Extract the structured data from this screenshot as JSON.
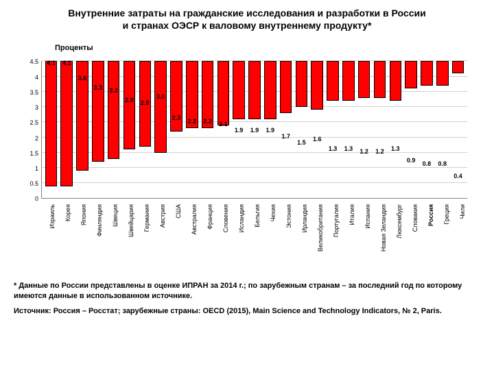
{
  "title_line1": "Внутренние затраты на гражданские исследования и разработки в России",
  "title_line2": "и странах ОЭСР к валовому внутреннему продукту*",
  "y_axis_label": "Проценты",
  "chart": {
    "type": "bar",
    "ymax": 4.5,
    "ytick_step": 0.5,
    "bar_color": "#ff0000",
    "bar_border": "#000000",
    "grid_color": "#d0d0d0",
    "axis_color": "#808080",
    "background_color": "#ffffff",
    "label_fontsize": 9,
    "value_label_fontsize": 9,
    "categories": [
      {
        "label": "Израиль",
        "value": 4.1,
        "bold": false
      },
      {
        "label": "Корея",
        "value": 4.1,
        "bold": false
      },
      {
        "label": "Япония",
        "value": 3.6,
        "bold": false
      },
      {
        "label": "Финляндия",
        "value": 3.3,
        "bold": false
      },
      {
        "label": "Швеция",
        "value": 3.2,
        "bold": false
      },
      {
        "label": "Швейцария",
        "value": 2.9,
        "bold": false
      },
      {
        "label": "Германия",
        "value": 2.8,
        "bold": false
      },
      {
        "label": "Австрия",
        "value": 3.0,
        "bold": false
      },
      {
        "label": "США",
        "value": 2.3,
        "bold": false
      },
      {
        "label": "Австралия",
        "value": 2.2,
        "bold": false
      },
      {
        "label": "Франция",
        "value": 2.2,
        "bold": false
      },
      {
        "label": "Словения",
        "value": 2.1,
        "bold": false
      },
      {
        "label": "Исландия",
        "value": 1.9,
        "bold": false
      },
      {
        "label": "Бельгия",
        "value": 1.9,
        "bold": false
      },
      {
        "label": "Чехия",
        "value": 1.9,
        "bold": false
      },
      {
        "label": "Эстония",
        "value": 1.7,
        "bold": false
      },
      {
        "label": "Ирландия",
        "value": 1.5,
        "bold": false
      },
      {
        "label": "Великобритания",
        "value": 1.6,
        "bold": false
      },
      {
        "label": "Португалия",
        "value": 1.3,
        "bold": false
      },
      {
        "label": "Италия",
        "value": 1.3,
        "bold": false
      },
      {
        "label": "Испания",
        "value": 1.2,
        "bold": false
      },
      {
        "label": "Новая Зеландия",
        "value": 1.2,
        "bold": false
      },
      {
        "label": "Люксембург",
        "value": 1.3,
        "bold": false
      },
      {
        "label": "Словакия",
        "value": 0.9,
        "bold": false
      },
      {
        "label": "Россия",
        "value": 0.8,
        "bold": true
      },
      {
        "label": "Греция",
        "value": 0.8,
        "bold": false
      },
      {
        "label": "Чили",
        "value": 0.4,
        "bold": false
      }
    ]
  },
  "footnote": "* Данные по России представлены в оценке ИПРАН за 2014 г.; по зарубежным странам – за последний год по которому имеются данные в использованном источнике.",
  "source": "Источник: Россия – Росстат; зарубежные страны: OECD (2015), Main Science and Technology Indicators, № 2, Paris."
}
